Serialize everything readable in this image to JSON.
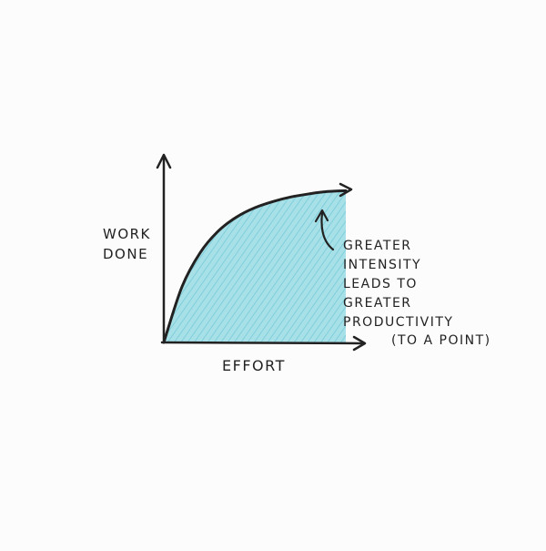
{
  "chart_data": {
    "type": "area",
    "title": "",
    "xlabel": "EFFORT",
    "ylabel_lines": [
      "WORK",
      "DONE"
    ],
    "x": [
      0,
      0.1,
      0.2,
      0.3,
      0.4,
      0.5,
      0.6,
      0.7,
      0.8,
      0.9,
      1.0
    ],
    "values": [
      0,
      0.36,
      0.58,
      0.72,
      0.81,
      0.87,
      0.91,
      0.94,
      0.96,
      0.975,
      0.98
    ],
    "xlim": [
      0,
      1
    ],
    "ylim": [
      0,
      1.2
    ],
    "grid": false,
    "fill_color": "#8fd6e0",
    "line_color": "#222222",
    "axis_color": "#222222",
    "annotation": {
      "lines": [
        "GREATER",
        "INTENSITY",
        "LEADS TO",
        "GREATER",
        "PRODUCTIVITY",
        "(TO A POINT)"
      ],
      "points_to_x": 0.85
    }
  }
}
